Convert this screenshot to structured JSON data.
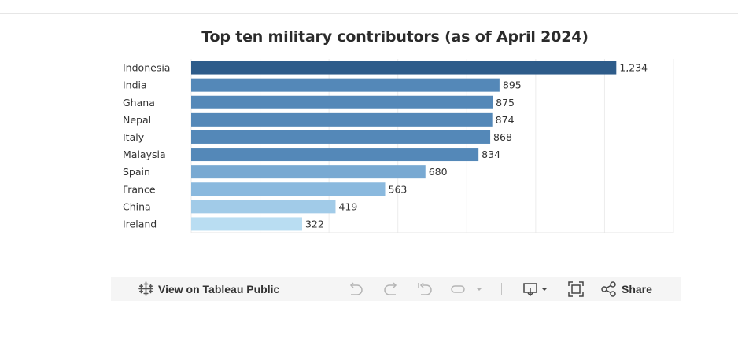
{
  "chart_data": {
    "type": "bar",
    "orientation": "horizontal",
    "title": "Top ten military contributors (as of  April 2024)",
    "categories": [
      "Indonesia",
      "India",
      "Ghana",
      "Nepal",
      "Italy",
      "Malaysia",
      "Spain",
      "France",
      "China",
      "Ireland"
    ],
    "values": [
      1234,
      895,
      875,
      874,
      868,
      834,
      680,
      563,
      419,
      322
    ],
    "value_labels": [
      "1,234",
      "895",
      "875",
      "874",
      "868",
      "834",
      "680",
      "563",
      "419",
      "322"
    ],
    "colors": [
      "#2e5c8a",
      "#5488b8",
      "#5488b8",
      "#5488b8",
      "#5488b8",
      "#5488b8",
      "#78a9d2",
      "#8ab9de",
      "#a1cbe8",
      "#b9ddf2"
    ],
    "xlim": [
      0,
      1400
    ],
    "grid": true,
    "xlabel": "",
    "ylabel": ""
  },
  "toolbar": {
    "view_label": "View on Tableau Public",
    "share_label": "Share",
    "icons": [
      "tableau-logo-icon",
      "undo-icon",
      "redo-icon",
      "revert-icon",
      "pause-icon",
      "dropdown-arrow-icon",
      "download-icon",
      "fullscreen-icon",
      "share-icon"
    ]
  }
}
